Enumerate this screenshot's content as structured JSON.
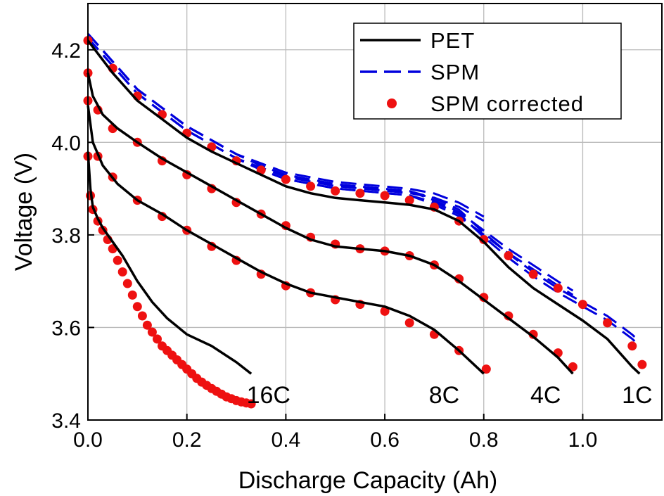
{
  "chart_data": {
    "type": "line",
    "title": "",
    "xlabel": "Discharge Capacity (Ah)",
    "ylabel": "Voltage (V)",
    "xlim": [
      0.0,
      1.16
    ],
    "ylim": [
      3.4,
      4.3
    ],
    "xticks": [
      {
        "value": 0.0,
        "label": "0.0"
      },
      {
        "value": 0.2,
        "label": "0.2"
      },
      {
        "value": 0.4,
        "label": "0.4"
      },
      {
        "value": 0.6,
        "label": "0.6"
      },
      {
        "value": 0.8,
        "label": "0.8"
      },
      {
        "value": 1.0,
        "label": "1.0"
      }
    ],
    "yticks": [
      {
        "value": 3.4,
        "label": "3.4"
      },
      {
        "value": 3.6,
        "label": "3.6"
      },
      {
        "value": 3.8,
        "label": "3.8"
      },
      {
        "value": 4.0,
        "label": "4.0"
      },
      {
        "value": 4.2,
        "label": "4.2"
      }
    ],
    "grid": true,
    "legend": {
      "position": "top-right",
      "entries": [
        {
          "key": "pet",
          "label": "PET",
          "style": "solid",
          "color": "#000000"
        },
        {
          "key": "spm",
          "label": "SPM",
          "style": "dashed",
          "color": "#0000dd"
        },
        {
          "key": "spm_corrected",
          "label": "SPM corrected",
          "style": "dots",
          "color": "#ee1111"
        }
      ]
    },
    "curves": [
      {
        "rate": "1C",
        "pet": [
          [
            0.0,
            4.22
          ],
          [
            0.05,
            4.15
          ],
          [
            0.1,
            4.09
          ],
          [
            0.15,
            4.05
          ],
          [
            0.2,
            4.01
          ],
          [
            0.25,
            3.98
          ],
          [
            0.3,
            3.955
          ],
          [
            0.35,
            3.93
          ],
          [
            0.4,
            3.905
          ],
          [
            0.45,
            3.89
          ],
          [
            0.5,
            3.88
          ],
          [
            0.55,
            3.875
          ],
          [
            0.6,
            3.87
          ],
          [
            0.65,
            3.865
          ],
          [
            0.7,
            3.855
          ],
          [
            0.75,
            3.83
          ],
          [
            0.8,
            3.785
          ],
          [
            0.85,
            3.73
          ],
          [
            0.9,
            3.685
          ],
          [
            0.95,
            3.65
          ],
          [
            1.0,
            3.615
          ],
          [
            1.05,
            3.575
          ],
          [
            1.1,
            3.515
          ],
          [
            1.115,
            3.5
          ]
        ],
        "spm": [
          [
            0.0,
            4.23
          ],
          [
            0.05,
            4.17
          ],
          [
            0.1,
            4.11
          ],
          [
            0.15,
            4.07
          ],
          [
            0.2,
            4.03
          ],
          [
            0.25,
            4.0
          ],
          [
            0.3,
            3.97
          ],
          [
            0.35,
            3.945
          ],
          [
            0.4,
            3.925
          ],
          [
            0.45,
            3.915
          ],
          [
            0.5,
            3.905
          ],
          [
            0.55,
            3.9
          ],
          [
            0.6,
            3.895
          ],
          [
            0.65,
            3.89
          ],
          [
            0.7,
            3.875
          ],
          [
            0.75,
            3.85
          ],
          [
            0.8,
            3.8
          ],
          [
            0.85,
            3.755
          ],
          [
            0.9,
            3.715
          ],
          [
            0.95,
            3.68
          ],
          [
            1.0,
            3.65
          ],
          [
            1.05,
            3.62
          ],
          [
            1.1,
            3.58
          ],
          [
            1.115,
            3.565
          ]
        ],
        "spm_corrected": [
          [
            0.0,
            4.22
          ],
          [
            0.05,
            4.16
          ],
          [
            0.1,
            4.1
          ],
          [
            0.15,
            4.06
          ],
          [
            0.2,
            4.02
          ],
          [
            0.25,
            3.99
          ],
          [
            0.3,
            3.96
          ],
          [
            0.35,
            3.94
          ],
          [
            0.4,
            3.92
          ],
          [
            0.45,
            3.905
          ],
          [
            0.5,
            3.895
          ],
          [
            0.55,
            3.89
          ],
          [
            0.6,
            3.885
          ],
          [
            0.65,
            3.875
          ],
          [
            0.7,
            3.86
          ],
          [
            0.75,
            3.83
          ],
          [
            0.8,
            3.79
          ],
          [
            0.85,
            3.755
          ],
          [
            0.9,
            3.715
          ],
          [
            0.95,
            3.685
          ],
          [
            1.0,
            3.65
          ],
          [
            1.05,
            3.61
          ],
          [
            1.1,
            3.56
          ],
          [
            1.12,
            3.52
          ]
        ]
      },
      {
        "rate": "4C",
        "pet": [
          [
            0.0,
            4.15
          ],
          [
            0.01,
            4.1
          ],
          [
            0.03,
            4.06
          ],
          [
            0.06,
            4.03
          ],
          [
            0.1,
            4.0
          ],
          [
            0.15,
            3.965
          ],
          [
            0.2,
            3.935
          ],
          [
            0.25,
            3.905
          ],
          [
            0.3,
            3.875
          ],
          [
            0.35,
            3.845
          ],
          [
            0.4,
            3.815
          ],
          [
            0.45,
            3.79
          ],
          [
            0.5,
            3.775
          ],
          [
            0.55,
            3.77
          ],
          [
            0.6,
            3.765
          ],
          [
            0.65,
            3.755
          ],
          [
            0.7,
            3.735
          ],
          [
            0.75,
            3.7
          ],
          [
            0.8,
            3.66
          ],
          [
            0.85,
            3.62
          ],
          [
            0.9,
            3.58
          ],
          [
            0.95,
            3.535
          ],
          [
            0.98,
            3.5
          ]
        ],
        "spm": [
          [
            0.0,
            4.23
          ],
          [
            0.05,
            4.17
          ],
          [
            0.1,
            4.11
          ],
          [
            0.15,
            4.07
          ],
          [
            0.2,
            4.03
          ],
          [
            0.25,
            4.0
          ],
          [
            0.3,
            3.97
          ],
          [
            0.35,
            3.945
          ],
          [
            0.4,
            3.925
          ],
          [
            0.45,
            3.915
          ],
          [
            0.5,
            3.905
          ],
          [
            0.55,
            3.9
          ],
          [
            0.6,
            3.895
          ],
          [
            0.65,
            3.89
          ],
          [
            0.7,
            3.87
          ],
          [
            0.75,
            3.845
          ],
          [
            0.8,
            3.805
          ],
          [
            0.85,
            3.765
          ],
          [
            0.9,
            3.73
          ],
          [
            0.95,
            3.695
          ],
          [
            0.98,
            3.675
          ]
        ],
        "spm_corrected": [
          [
            0.0,
            4.15
          ],
          [
            0.02,
            4.07
          ],
          [
            0.05,
            4.03
          ],
          [
            0.1,
            4.0
          ],
          [
            0.15,
            3.96
          ],
          [
            0.2,
            3.93
          ],
          [
            0.25,
            3.9
          ],
          [
            0.3,
            3.87
          ],
          [
            0.35,
            3.845
          ],
          [
            0.4,
            3.82
          ],
          [
            0.45,
            3.795
          ],
          [
            0.5,
            3.78
          ],
          [
            0.55,
            3.77
          ],
          [
            0.6,
            3.765
          ],
          [
            0.65,
            3.755
          ],
          [
            0.7,
            3.735
          ],
          [
            0.75,
            3.705
          ],
          [
            0.8,
            3.665
          ],
          [
            0.85,
            3.625
          ],
          [
            0.9,
            3.585
          ],
          [
            0.95,
            3.545
          ],
          [
            0.98,
            3.515
          ]
        ]
      },
      {
        "rate": "8C",
        "pet": [
          [
            0.0,
            4.08
          ],
          [
            0.01,
            4.0
          ],
          [
            0.03,
            3.95
          ],
          [
            0.06,
            3.91
          ],
          [
            0.1,
            3.875
          ],
          [
            0.15,
            3.845
          ],
          [
            0.2,
            3.81
          ],
          [
            0.25,
            3.78
          ],
          [
            0.3,
            3.75
          ],
          [
            0.35,
            3.72
          ],
          [
            0.4,
            3.695
          ],
          [
            0.45,
            3.675
          ],
          [
            0.5,
            3.665
          ],
          [
            0.55,
            3.655
          ],
          [
            0.6,
            3.645
          ],
          [
            0.65,
            3.625
          ],
          [
            0.7,
            3.595
          ],
          [
            0.75,
            3.55
          ],
          [
            0.8,
            3.5
          ]
        ],
        "spm": [
          [
            0.0,
            4.23
          ],
          [
            0.05,
            4.17
          ],
          [
            0.1,
            4.11
          ],
          [
            0.15,
            4.07
          ],
          [
            0.2,
            4.03
          ],
          [
            0.25,
            4.0
          ],
          [
            0.3,
            3.97
          ],
          [
            0.35,
            3.95
          ],
          [
            0.4,
            3.93
          ],
          [
            0.45,
            3.92
          ],
          [
            0.5,
            3.91
          ],
          [
            0.55,
            3.905
          ],
          [
            0.6,
            3.9
          ],
          [
            0.65,
            3.895
          ],
          [
            0.7,
            3.885
          ],
          [
            0.75,
            3.865
          ],
          [
            0.8,
            3.835
          ]
        ],
        "spm_corrected": [
          [
            0.0,
            4.09
          ],
          [
            0.02,
            3.97
          ],
          [
            0.05,
            3.925
          ],
          [
            0.1,
            3.875
          ],
          [
            0.15,
            3.84
          ],
          [
            0.2,
            3.81
          ],
          [
            0.25,
            3.775
          ],
          [
            0.3,
            3.745
          ],
          [
            0.35,
            3.715
          ],
          [
            0.4,
            3.69
          ],
          [
            0.45,
            3.675
          ],
          [
            0.5,
            3.66
          ],
          [
            0.55,
            3.65
          ],
          [
            0.6,
            3.635
          ],
          [
            0.65,
            3.61
          ],
          [
            0.7,
            3.585
          ],
          [
            0.75,
            3.55
          ],
          [
            0.805,
            3.51
          ]
        ]
      },
      {
        "rate": "16C",
        "pet": [
          [
            0.0,
            3.98
          ],
          [
            0.005,
            3.9
          ],
          [
            0.01,
            3.86
          ],
          [
            0.02,
            3.835
          ],
          [
            0.03,
            3.815
          ],
          [
            0.05,
            3.785
          ],
          [
            0.07,
            3.755
          ],
          [
            0.1,
            3.7
          ],
          [
            0.13,
            3.655
          ],
          [
            0.16,
            3.62
          ],
          [
            0.2,
            3.585
          ],
          [
            0.25,
            3.56
          ],
          [
            0.3,
            3.525
          ],
          [
            0.33,
            3.5
          ]
        ],
        "spm": [
          [
            0.0,
            4.23
          ],
          [
            0.05,
            4.17
          ],
          [
            0.1,
            4.11
          ],
          [
            0.15,
            4.07
          ],
          [
            0.2,
            4.03
          ],
          [
            0.25,
            4.0
          ],
          [
            0.3,
            3.97
          ],
          [
            0.33,
            3.955
          ]
        ],
        "spm_corrected": [
          [
            0.0,
            3.97
          ],
          [
            0.005,
            3.885
          ],
          [
            0.01,
            3.855
          ],
          [
            0.02,
            3.83
          ],
          [
            0.03,
            3.81
          ],
          [
            0.04,
            3.79
          ],
          [
            0.05,
            3.77
          ],
          [
            0.06,
            3.745
          ],
          [
            0.07,
            3.72
          ],
          [
            0.08,
            3.695
          ],
          [
            0.09,
            3.67
          ],
          [
            0.1,
            3.645
          ],
          [
            0.11,
            3.625
          ],
          [
            0.12,
            3.605
          ],
          [
            0.13,
            3.59
          ],
          [
            0.14,
            3.575
          ],
          [
            0.15,
            3.56
          ],
          [
            0.16,
            3.55
          ],
          [
            0.17,
            3.54
          ],
          [
            0.18,
            3.53
          ],
          [
            0.19,
            3.52
          ],
          [
            0.2,
            3.51
          ],
          [
            0.21,
            3.5
          ],
          [
            0.22,
            3.49
          ],
          [
            0.23,
            3.482
          ],
          [
            0.24,
            3.475
          ],
          [
            0.25,
            3.468
          ],
          [
            0.26,
            3.462
          ],
          [
            0.27,
            3.456
          ],
          [
            0.28,
            3.45
          ],
          [
            0.29,
            3.446
          ],
          [
            0.3,
            3.442
          ],
          [
            0.31,
            3.439
          ],
          [
            0.32,
            3.437
          ],
          [
            0.33,
            3.435
          ]
        ]
      }
    ],
    "annotations": [
      {
        "text": "16C",
        "x": 0.365,
        "y": 3.455
      },
      {
        "text": "8C",
        "x": 0.72,
        "y": 3.455
      },
      {
        "text": "4C",
        "x": 0.925,
        "y": 3.455
      },
      {
        "text": "1C",
        "x": 1.11,
        "y": 3.455
      }
    ],
    "colors": {
      "pet": "#000000",
      "spm": "#0000dd",
      "spm_corrected": "#ee1111",
      "grid": "#bbbbbb"
    }
  }
}
